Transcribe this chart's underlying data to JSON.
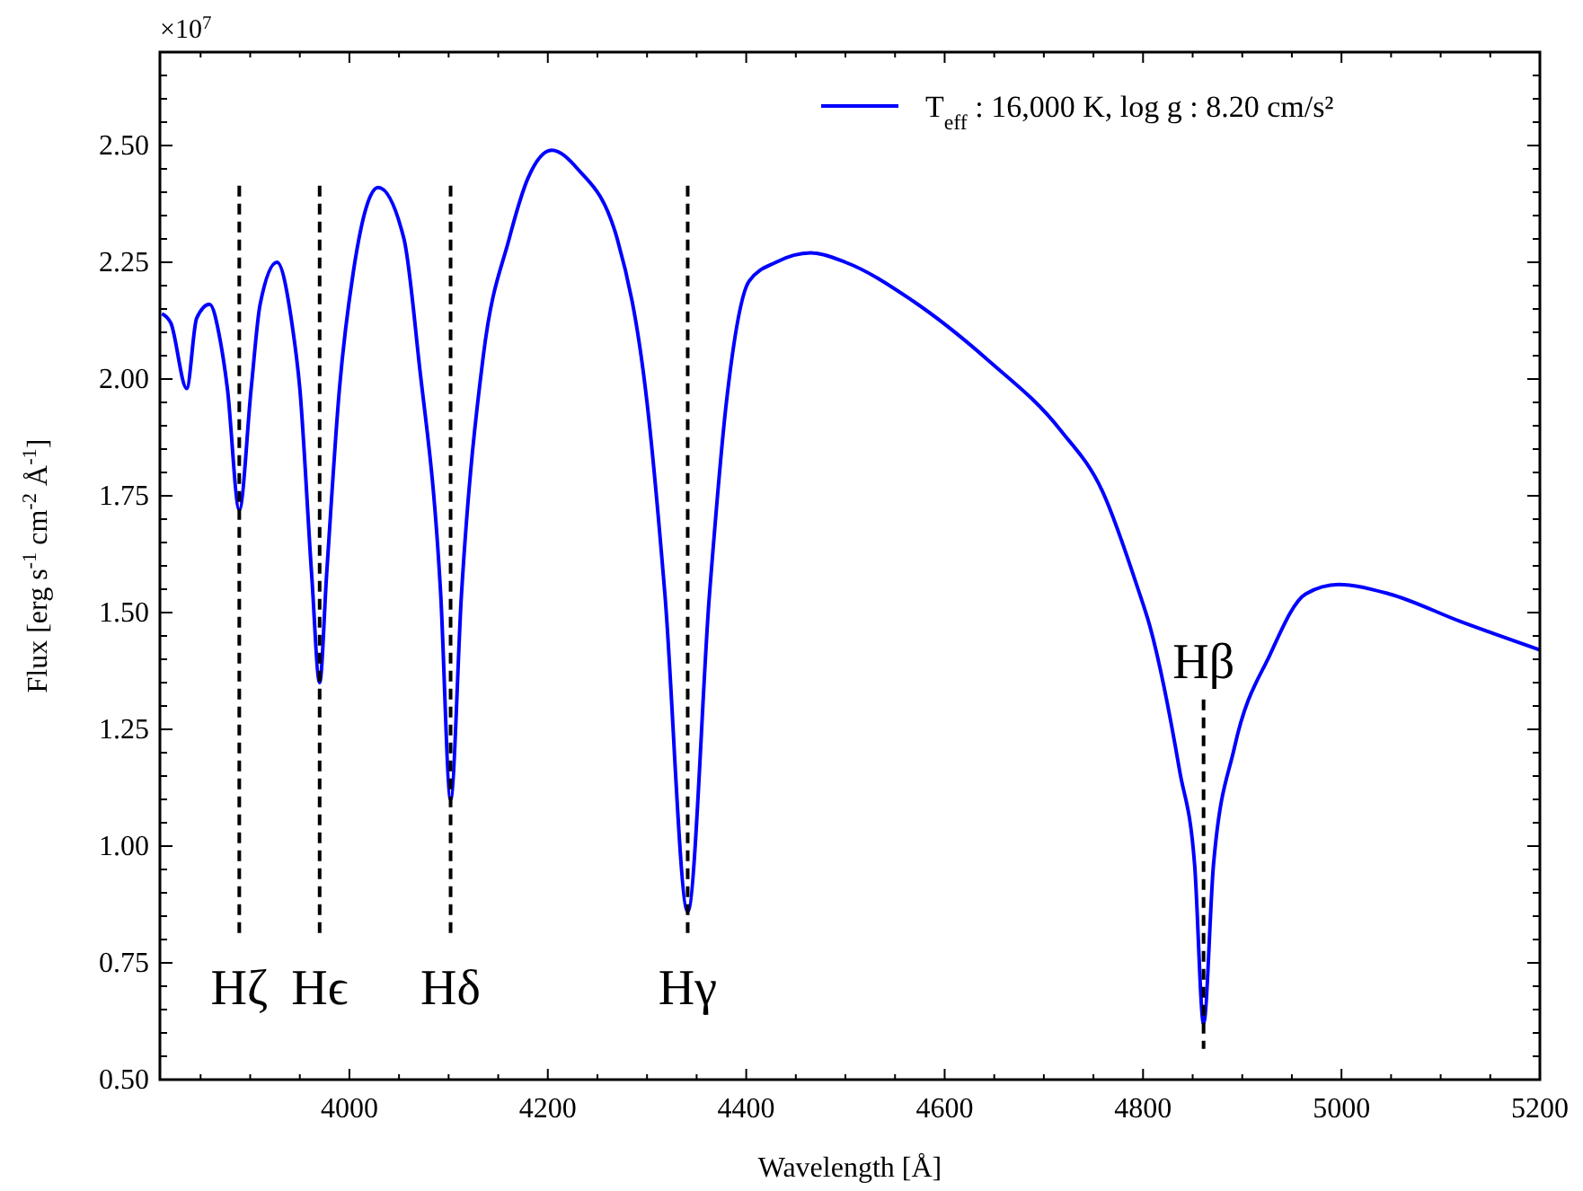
{
  "chart_data": {
    "type": "line",
    "xlabel": "Wavelength [Å]",
    "ylabel": "Flux [erg s$^{-1}$ cm$^{-2}$ Å$^{-1}$]",
    "xlim": [
      3809,
      5200
    ],
    "ylim": [
      0.5,
      2.7
    ],
    "xticks": [
      {
        "value": 3850,
        "label": null
      },
      4000,
      {
        "value": 3900,
        "label": null
      },
      {
        "value": 3950,
        "label": null
      },
      {
        "value": 4050,
        "label": null
      },
      {
        "value": 4100,
        "label": null
      },
      {
        "value": 4150,
        "label": null
      },
      4200,
      {
        "value": 4250,
        "label": null
      },
      {
        "value": 4300,
        "label": null
      },
      {
        "value": 4350,
        "label": null
      },
      4400,
      {
        "value": 4450,
        "label": null
      },
      {
        "value": 4500,
        "label": null
      },
      {
        "value": 4550,
        "label": null
      },
      4600,
      {
        "value": 4650,
        "label": null
      },
      {
        "value": 4700,
        "label": null
      },
      {
        "value": 4750,
        "label": null
      },
      4800,
      {
        "value": 4850,
        "label": null
      },
      {
        "value": 4900,
        "label": null
      },
      {
        "value": 4950,
        "label": null
      },
      5000,
      {
        "value": 5050,
        "label": null
      },
      {
        "value": 5100,
        "label": null
      },
      {
        "value": 5150,
        "label": null
      },
      5200
    ],
    "yticks": [
      {
        "value": 0.5,
        "label": "0.50"
      },
      {
        "value": 0.55,
        "label": null
      },
      {
        "value": 0.6,
        "label": null
      },
      {
        "value": 0.65,
        "label": null
      },
      {
        "value": 0.7,
        "label": null
      },
      {
        "value": 0.75,
        "label": "0.75"
      },
      {
        "value": 0.8,
        "label": null
      },
      {
        "value": 0.85,
        "label": null
      },
      {
        "value": 0.9,
        "label": null
      },
      {
        "value": 0.95,
        "label": null
      },
      {
        "value": 1.0,
        "label": "1.00"
      },
      {
        "value": 1.05,
        "label": null
      },
      {
        "value": 1.1,
        "label": null
      },
      {
        "value": 1.15,
        "label": null
      },
      {
        "value": 1.2,
        "label": null
      },
      {
        "value": 1.25,
        "label": "1.25"
      },
      {
        "value": 1.3,
        "label": null
      },
      {
        "value": 1.35,
        "label": null
      },
      {
        "value": 1.4,
        "label": null
      },
      {
        "value": 1.45,
        "label": null
      },
      {
        "value": 1.5,
        "label": "1.50"
      },
      {
        "value": 1.55,
        "label": null
      },
      {
        "value": 1.6,
        "label": null
      },
      {
        "value": 1.65,
        "label": null
      },
      {
        "value": 1.7,
        "label": null
      },
      {
        "value": 1.75,
        "label": "1.75"
      },
      {
        "value": 1.8,
        "label": null
      },
      {
        "value": 1.85,
        "label": null
      },
      {
        "value": 1.9,
        "label": null
      },
      {
        "value": 1.95,
        "label": null
      },
      {
        "value": 2.0,
        "label": "2.00"
      },
      {
        "value": 2.05,
        "label": null
      },
      {
        "value": 2.1,
        "label": null
      },
      {
        "value": 2.15,
        "label": null
      },
      {
        "value": 2.2,
        "label": null
      },
      {
        "value": 2.25,
        "label": "2.25"
      },
      {
        "value": 2.3,
        "label": null
      },
      {
        "value": 2.35,
        "label": null
      },
      {
        "value": 2.4,
        "label": null
      },
      {
        "value": 2.45,
        "label": null
      },
      {
        "value": 2.5,
        "label": "2.50"
      },
      {
        "value": 2.55,
        "label": null
      },
      {
        "value": 2.6,
        "label": null
      },
      {
        "value": 2.65,
        "label": null
      },
      {
        "value": 2.7,
        "label": null
      }
    ],
    "grid": false,
    "legend": "top right",
    "series": [
      {
        "name": "T$_{eff}$ : 16,000 K, log g : 8.20 cm/s²",
        "color": "#0000ff",
        "line_style": "solid",
        "x": [
          3811,
          3820,
          3836,
          3846,
          3859,
          3870,
          3877,
          3889,
          3901,
          3910,
          3927,
          3942,
          3950,
          3962,
          3970,
          3977,
          3990,
          4004,
          4029,
          4055,
          4070,
          4092,
          4102,
          4113,
          4135,
          4161,
          4180,
          4204,
          4230,
          4270,
          4300,
          4318,
          4341,
          4363,
          4380,
          4403,
          4430,
          4465,
          4500,
          4566,
          4644,
          4717,
          4759,
          4795,
          4807,
          4837,
          4852,
          4861,
          4871,
          4892,
          4928,
          4964,
          4997,
          5048,
          5121,
          5200
        ],
        "values": [
          2.14,
          2.12,
          1.98,
          2.13,
          2.16,
          2.08,
          1.98,
          1.72,
          1.98,
          2.16,
          2.25,
          2.12,
          1.98,
          1.58,
          1.35,
          1.58,
          1.98,
          2.23,
          2.41,
          2.3,
          2.04,
          1.54,
          1.1,
          1.54,
          2.05,
          2.3,
          2.43,
          2.49,
          2.45,
          2.3,
          1.95,
          1.54,
          0.86,
          1.54,
          1.95,
          2.21,
          2.25,
          2.27,
          2.25,
          2.17,
          2.04,
          1.89,
          1.76,
          1.55,
          1.47,
          1.16,
          0.96,
          0.62,
          0.96,
          1.21,
          1.41,
          1.54,
          1.56,
          1.54,
          1.48,
          1.42
        ]
      }
    ],
    "ref_lines": [
      {
        "axis": "x",
        "value": 3889,
        "label": "Hζ",
        "color": "#000000",
        "line_style": "dashed"
      },
      {
        "axis": "x",
        "value": 3970,
        "label": "Hϵ",
        "color": "#000000",
        "line_style": "dashed"
      },
      {
        "axis": "x",
        "value": 4102,
        "label": "Hδ",
        "color": "#000000",
        "line_style": "dashed"
      },
      {
        "axis": "x",
        "value": 4341,
        "label": "Hγ",
        "color": "#000000",
        "line_style": "dashed"
      },
      {
        "axis": "x",
        "value": 4861,
        "label": "Hβ",
        "color": "#000000",
        "line_style": "dashed"
      }
    ],
    "annotations": [
      "×10$^{7}$"
    ]
  }
}
